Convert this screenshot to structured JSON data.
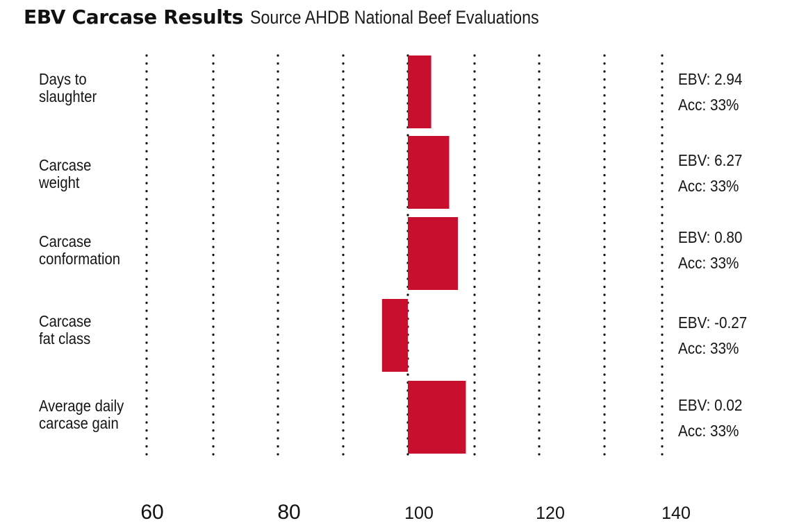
{
  "header": {
    "title": "EBV Carcase Results",
    "subtitle": "Source AHDB National Beef Evaluations"
  },
  "colors": {
    "bar": "#c8102e",
    "text": "#141414",
    "gridline": "#111111"
  },
  "chart_data": {
    "type": "bar",
    "orientation": "horizontal",
    "baseline": 100,
    "xlim": [
      60,
      140
    ],
    "gridlines": [
      60,
      70,
      80,
      90,
      100,
      110,
      120,
      130,
      140
    ],
    "grid": true,
    "grid_style": "dotted",
    "tick_labels": [
      "60",
      "80",
      "100",
      "120",
      "140"
    ],
    "categories": [
      "Days to slaughter",
      "Carcase weight",
      "Carcase conformation",
      "Carcase fat class",
      "Average daily carcase gain"
    ],
    "values": [
      103.5,
      106.2,
      107.5,
      96,
      108.7
    ],
    "annotations": [
      {
        "ebv": "EBV: 2.94",
        "acc": "Acc: 33%"
      },
      {
        "ebv": "EBV: 6.27",
        "acc": "Acc: 33%"
      },
      {
        "ebv": "EBV: 0.80",
        "acc": "Acc: 33%"
      },
      {
        "ebv": "EBV: -0.27",
        "acc": "Acc: 33%"
      },
      {
        "ebv": "EBV: 0.02",
        "acc": "Acc: 33%"
      }
    ]
  }
}
